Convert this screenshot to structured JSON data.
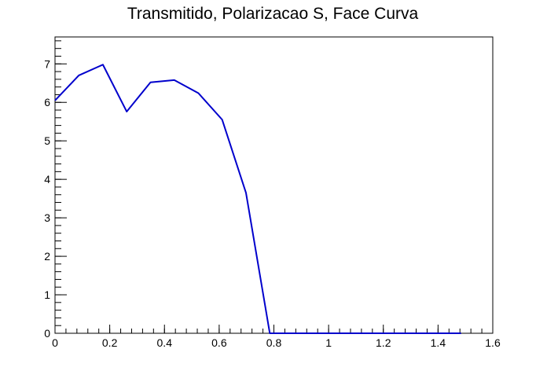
{
  "chart_data": {
    "type": "line",
    "title": "Transmitido, Polarizacao S, Face Curva",
    "xlabel": "",
    "ylabel": "",
    "xlim": [
      0,
      1.6
    ],
    "ylim": [
      0,
      7.7
    ],
    "x_ticks": [
      0,
      0.2,
      0.4,
      0.6,
      0.8,
      1,
      1.2,
      1.4,
      1.6
    ],
    "x_tick_labels": [
      "0",
      "0.2",
      "0.4",
      "0.6",
      "0.8",
      "1",
      "1.2",
      "1.4",
      "1.6"
    ],
    "y_ticks": [
      0,
      1,
      2,
      3,
      4,
      5,
      6,
      7
    ],
    "y_tick_labels": [
      "0",
      "1",
      "2",
      "3",
      "4",
      "5",
      "6",
      "7"
    ],
    "grid": false,
    "legend": "none",
    "series": [
      {
        "color": "#0000cc",
        "x": [
          0,
          0.087,
          0.175,
          0.262,
          0.349,
          0.436,
          0.524,
          0.611,
          0.698,
          0.785,
          0.873,
          0.96,
          1.047,
          1.134,
          1.222,
          1.309,
          1.396,
          1.484
        ],
        "y": [
          6.05,
          6.7,
          6.98,
          5.76,
          6.52,
          6.58,
          6.24,
          5.55,
          3.65,
          0,
          0,
          0,
          0,
          0,
          0,
          0,
          0,
          0
        ]
      }
    ]
  }
}
